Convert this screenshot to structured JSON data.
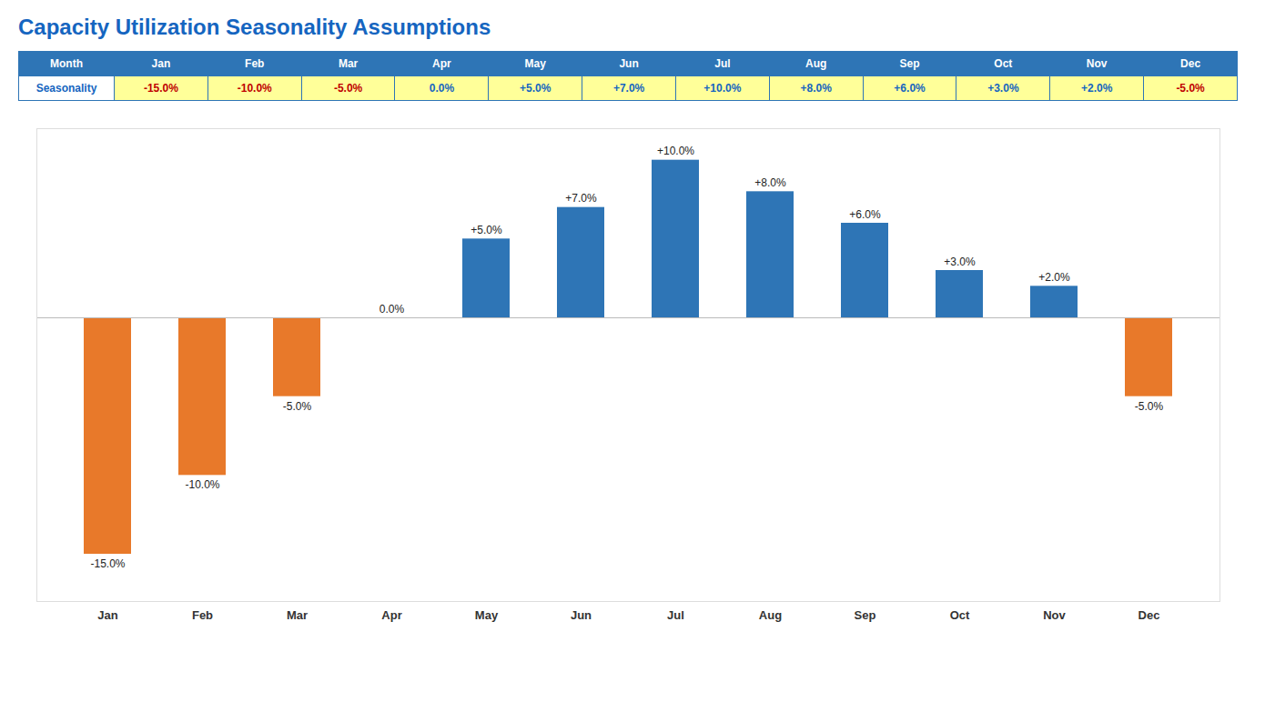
{
  "chart_data": {
    "type": "bar",
    "title": "Capacity Utilization Seasonality Assumptions",
    "categories": [
      "Jan",
      "Feb",
      "Mar",
      "Apr",
      "May",
      "Jun",
      "Jul",
      "Aug",
      "Sep",
      "Oct",
      "Nov",
      "Dec"
    ],
    "values": [
      -15.0,
      -10.0,
      -5.0,
      0.0,
      5.0,
      7.0,
      10.0,
      8.0,
      6.0,
      3.0,
      2.0,
      -5.0
    ],
    "value_labels": [
      "-15.0%",
      "-10.0%",
      "-5.0%",
      "0.0%",
      "+5.0%",
      "+7.0%",
      "+10.0%",
      "+8.0%",
      "+6.0%",
      "+3.0%",
      "+2.0%",
      "-5.0%"
    ],
    "colors": [
      "#E8792A",
      "#E8792A",
      "#E8792A",
      "#2E75B6",
      "#2E75B6",
      "#2E75B6",
      "#2E75B6",
      "#2E75B6",
      "#2E75B6",
      "#2E75B6",
      "#2E75B6",
      "#E8792A"
    ],
    "ylim": [
      -18,
      12
    ],
    "data_labels": true,
    "tick_labels": "x",
    "grid": false,
    "annotations": [
      "Month",
      "Seasonality"
    ]
  }
}
